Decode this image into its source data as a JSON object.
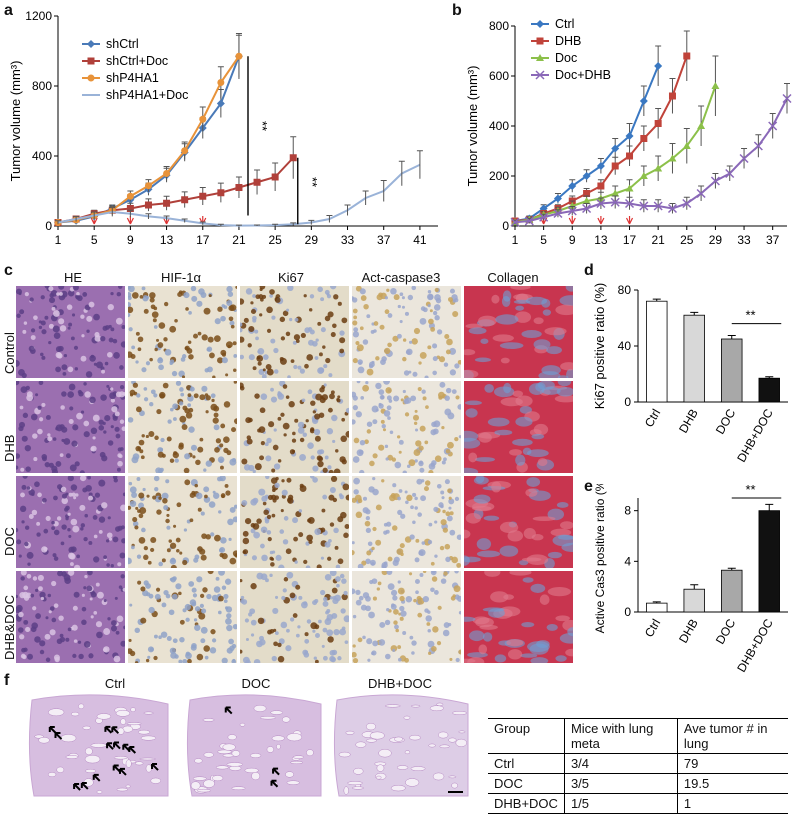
{
  "panels": {
    "a": "a",
    "b": "b",
    "c": "c",
    "d": "d",
    "e": "e",
    "f": "f"
  },
  "chart_data": [
    {
      "id": "a",
      "type": "line",
      "ylabel": "Tumor volume (mm³)",
      "xlabel": "",
      "xticks": [
        1,
        5,
        9,
        13,
        17,
        21,
        25,
        29,
        33,
        37,
        41
      ],
      "yticks": [
        0,
        400,
        800,
        1200
      ],
      "xlim": [
        1,
        43
      ],
      "ylim": [
        0,
        1200
      ],
      "treatment_arrows": [
        5,
        9,
        13,
        17
      ],
      "series": [
        {
          "name": "shCtrl",
          "color": "#4a7ab8",
          "marker": "diamond",
          "x": [
            1,
            3,
            5,
            7,
            9,
            11,
            13,
            15,
            17,
            19,
            21
          ],
          "y": [
            20,
            30,
            55,
            100,
            150,
            210,
            290,
            420,
            560,
            700,
            970
          ],
          "err": [
            10,
            12,
            15,
            20,
            30,
            35,
            40,
            50,
            60,
            80,
            120
          ]
        },
        {
          "name": "shCtrl+Doc",
          "color": "#b0403a",
          "marker": "square",
          "x": [
            1,
            3,
            5,
            7,
            9,
            11,
            13,
            15,
            17,
            19,
            21,
            23,
            25,
            27
          ],
          "y": [
            20,
            40,
            70,
            90,
            100,
            120,
            130,
            150,
            170,
            190,
            220,
            250,
            280,
            390
          ],
          "err": [
            10,
            15,
            20,
            25,
            30,
            35,
            40,
            45,
            50,
            55,
            60,
            70,
            80,
            120
          ]
        },
        {
          "name": "shP4HA1",
          "color": "#e8933a",
          "marker": "circle",
          "x": [
            1,
            3,
            5,
            7,
            9,
            11,
            13,
            15,
            17,
            19,
            21
          ],
          "y": [
            20,
            35,
            60,
            90,
            170,
            230,
            300,
            430,
            610,
            820,
            970
          ],
          "err": [
            10,
            12,
            15,
            20,
            30,
            35,
            40,
            50,
            70,
            90,
            130
          ]
        },
        {
          "name": "shP4HA1+Doc",
          "color": "#9ab3d8",
          "marker": "none",
          "x": [
            1,
            3,
            5,
            7,
            9,
            11,
            13,
            15,
            17,
            19,
            21,
            23,
            25,
            27,
            29,
            31,
            33,
            35,
            37,
            39,
            41
          ],
          "y": [
            20,
            40,
            60,
            80,
            70,
            55,
            45,
            30,
            15,
            5,
            2,
            3,
            5,
            10,
            20,
            40,
            90,
            160,
            200,
            300,
            350
          ],
          "err": [
            10,
            15,
            20,
            25,
            20,
            15,
            12,
            10,
            8,
            5,
            3,
            3,
            5,
            8,
            12,
            20,
            30,
            40,
            60,
            70,
            80
          ]
        }
      ],
      "annotations": [
        "**",
        "**"
      ]
    },
    {
      "id": "b",
      "type": "line",
      "ylabel": "Tumor volume (mm³)",
      "xlabel": "",
      "xticks": [
        1,
        5,
        9,
        13,
        17,
        21,
        25,
        29,
        33,
        37
      ],
      "yticks": [
        0,
        200,
        400,
        600,
        800
      ],
      "xlim": [
        1,
        39
      ],
      "ylim": [
        0,
        800
      ],
      "treatment_arrows": [
        5,
        9,
        13,
        17
      ],
      "series": [
        {
          "name": "Ctrl",
          "color": "#3a78c2",
          "marker": "diamond",
          "x": [
            1,
            3,
            5,
            7,
            9,
            11,
            13,
            15,
            17,
            19,
            21
          ],
          "y": [
            20,
            30,
            70,
            110,
            160,
            200,
            240,
            310,
            360,
            500,
            640
          ],
          "err": [
            8,
            10,
            15,
            20,
            25,
            25,
            30,
            40,
            50,
            60,
            80
          ]
        },
        {
          "name": "DHB",
          "color": "#c0433a",
          "marker": "square",
          "x": [
            1,
            3,
            5,
            7,
            9,
            11,
            13,
            15,
            17,
            19,
            21,
            23,
            25
          ],
          "y": [
            20,
            25,
            50,
            70,
            100,
            130,
            160,
            240,
            280,
            350,
            410,
            520,
            680
          ],
          "err": [
            8,
            10,
            12,
            15,
            20,
            20,
            25,
            35,
            40,
            50,
            60,
            70,
            100
          ]
        },
        {
          "name": "Doc",
          "color": "#8cc04a",
          "marker": "triangle",
          "x": [
            1,
            3,
            5,
            7,
            9,
            11,
            13,
            15,
            17,
            19,
            21,
            23,
            25,
            27,
            29
          ],
          "y": [
            15,
            25,
            45,
            60,
            80,
            100,
            110,
            130,
            150,
            200,
            230,
            270,
            320,
            400,
            560
          ],
          "err": [
            8,
            10,
            12,
            15,
            20,
            20,
            25,
            30,
            35,
            40,
            50,
            60,
            70,
            80,
            120
          ]
        },
        {
          "name": "Doc+DHB",
          "color": "#8a68b8",
          "marker": "cross",
          "x": [
            1,
            3,
            5,
            7,
            9,
            11,
            13,
            15,
            17,
            19,
            21,
            23,
            25,
            27,
            29,
            31,
            33,
            35,
            37,
            39
          ],
          "y": [
            15,
            20,
            35,
            50,
            60,
            70,
            90,
            95,
            90,
            80,
            80,
            70,
            90,
            130,
            180,
            210,
            270,
            320,
            400,
            510
          ],
          "err": [
            8,
            10,
            12,
            15,
            18,
            20,
            22,
            25,
            25,
            25,
            25,
            20,
            25,
            30,
            30,
            30,
            40,
            45,
            50,
            60
          ]
        }
      ]
    },
    {
      "id": "d",
      "type": "bar",
      "ylabel": "Ki67 positive ratio (%)",
      "categories": [
        "Ctrl",
        "DHB",
        "DOC",
        "DHB+DOC"
      ],
      "values": [
        72,
        62,
        45,
        17
      ],
      "err": [
        1.5,
        2,
        2.5,
        1
      ],
      "colors": [
        "#ffffff",
        "#d8d8d8",
        "#a8a8a8",
        "#111111"
      ],
      "yticks": [
        0,
        40,
        80
      ],
      "ylim": [
        0,
        80
      ],
      "annotation": "**"
    },
    {
      "id": "e",
      "type": "bar",
      "ylabel": "Active Cas3 positive ratio (%)",
      "categories": [
        "Ctrl",
        "DHB",
        "DOC",
        "DHB+DOC"
      ],
      "values": [
        0.7,
        1.8,
        3.3,
        8.0
      ],
      "err": [
        0.1,
        0.35,
        0.15,
        0.5
      ],
      "colors": [
        "#ffffff",
        "#d8d8d8",
        "#a8a8a8",
        "#111111"
      ],
      "yticks": [
        0,
        4,
        8
      ],
      "ylim": [
        0,
        9
      ],
      "annotation": "**"
    }
  ],
  "histology": {
    "columns": [
      "HE",
      "HIF-1α",
      "Ki67",
      "Act-caspase3",
      "Collagen"
    ],
    "rows": [
      "Control",
      "DHB",
      "DOC",
      "DHB&DOC"
    ]
  },
  "lung": {
    "captions": [
      "Ctrl",
      "DOC",
      "DHB+DOC"
    ]
  },
  "meta_table": {
    "headers": [
      "Group",
      "Mice with lung meta",
      "Ave tumor # in lung"
    ],
    "rows": [
      [
        "Ctrl",
        "3/4",
        "79"
      ],
      [
        "DOC",
        "3/5",
        "19.5"
      ],
      [
        "DHB+DOC",
        "1/5",
        "1"
      ]
    ]
  }
}
